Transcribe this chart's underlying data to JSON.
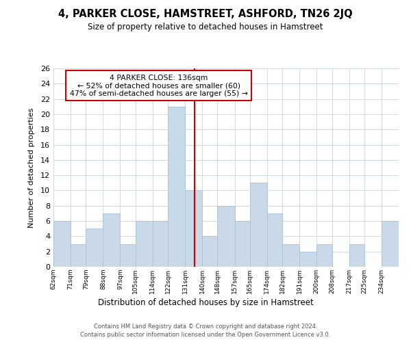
{
  "title": "4, PARKER CLOSE, HAMSTREET, ASHFORD, TN26 2JQ",
  "subtitle": "Size of property relative to detached houses in Hamstreet",
  "xlabel": "Distribution of detached houses by size in Hamstreet",
  "ylabel": "Number of detached properties",
  "bin_labels": [
    "62sqm",
    "71sqm",
    "79sqm",
    "88sqm",
    "97sqm",
    "105sqm",
    "114sqm",
    "122sqm",
    "131sqm",
    "140sqm",
    "148sqm",
    "157sqm",
    "165sqm",
    "174sqm",
    "182sqm",
    "191sqm",
    "200sqm",
    "208sqm",
    "217sqm",
    "225sqm",
    "234sqm"
  ],
  "bin_edges": [
    62,
    71,
    79,
    88,
    97,
    105,
    114,
    122,
    131,
    140,
    148,
    157,
    165,
    174,
    182,
    191,
    200,
    208,
    217,
    225,
    234,
    243
  ],
  "counts": [
    6,
    3,
    5,
    7,
    3,
    6,
    6,
    21,
    10,
    4,
    8,
    6,
    11,
    7,
    3,
    2,
    3,
    0,
    3,
    0,
    6
  ],
  "bar_color": "#c9d9e8",
  "bar_edge_color": "#a8c0d8",
  "marker_value": 136,
  "marker_color": "#cc0000",
  "annotation_title": "4 PARKER CLOSE: 136sqm",
  "annotation_line1": "← 52% of detached houses are smaller (60)",
  "annotation_line2": "47% of semi-detached houses are larger (55) →",
  "annotation_box_color": "#ffffff",
  "annotation_box_edge": "#cc0000",
  "ylim": [
    0,
    26
  ],
  "yticks": [
    0,
    2,
    4,
    6,
    8,
    10,
    12,
    14,
    16,
    18,
    20,
    22,
    24,
    26
  ],
  "footer1": "Contains HM Land Registry data © Crown copyright and database right 2024.",
  "footer2": "Contains public sector information licensed under the Open Government Licence v3.0.",
  "background_color": "#ffffff",
  "grid_color": "#d0d8e0"
}
